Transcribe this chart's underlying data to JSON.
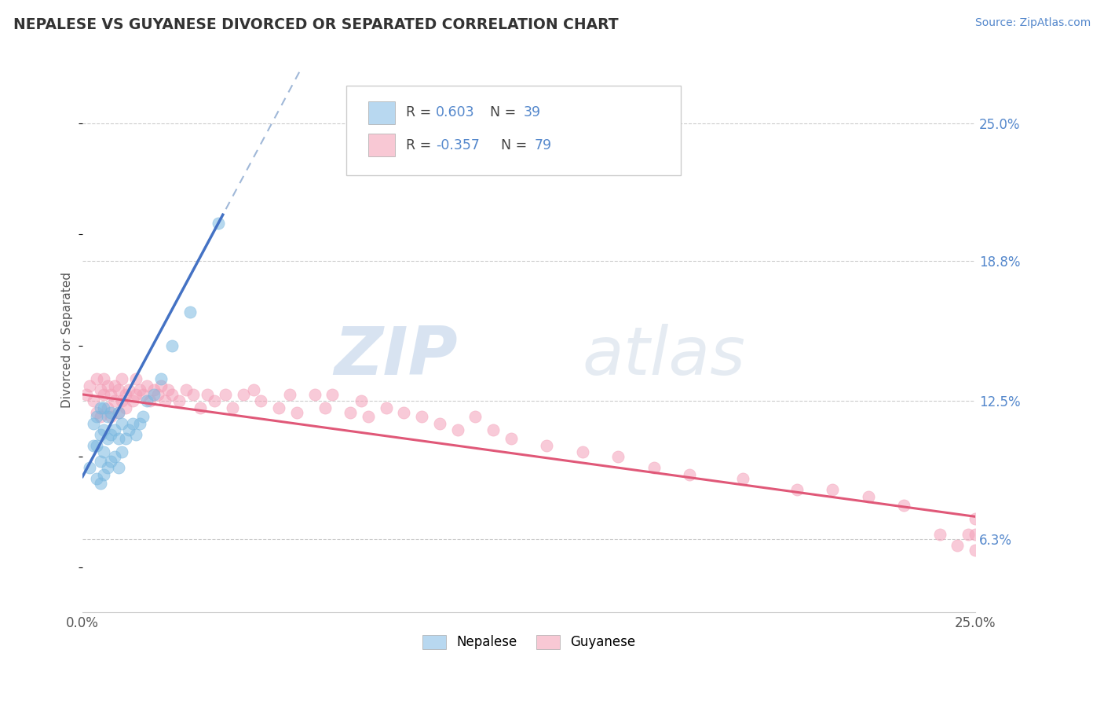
{
  "title": "NEPALESE VS GUYANESE DIVORCED OR SEPARATED CORRELATION CHART",
  "source_text": "Source: ZipAtlas.com",
  "ylabel": "Divorced or Separated",
  "ytick_labels": [
    "25.0%",
    "18.8%",
    "12.5%",
    "6.3%"
  ],
  "ytick_values": [
    0.25,
    0.188,
    0.125,
    0.063
  ],
  "xlim": [
    0.0,
    0.25
  ],
  "ylim": [
    0.03,
    0.275
  ],
  "watermark_zip": "ZIP",
  "watermark_atlas": "atlas",
  "blue_color": "#7ab8e0",
  "pink_color": "#f4a0b8",
  "blue_fill": "#b8d8f0",
  "pink_fill": "#f8c8d4",
  "blue_line": "#4472c4",
  "pink_line": "#e05878",
  "dash_color": "#a0b8d8",
  "nepalese_x": [
    0.002,
    0.003,
    0.003,
    0.004,
    0.004,
    0.004,
    0.005,
    0.005,
    0.005,
    0.005,
    0.006,
    0.006,
    0.006,
    0.006,
    0.007,
    0.007,
    0.007,
    0.008,
    0.008,
    0.008,
    0.009,
    0.009,
    0.01,
    0.01,
    0.01,
    0.011,
    0.011,
    0.012,
    0.013,
    0.014,
    0.015,
    0.016,
    0.017,
    0.018,
    0.02,
    0.022,
    0.025,
    0.03,
    0.038
  ],
  "nepalese_y": [
    0.095,
    0.105,
    0.115,
    0.09,
    0.105,
    0.118,
    0.088,
    0.098,
    0.11,
    0.122,
    0.092,
    0.102,
    0.112,
    0.122,
    0.095,
    0.108,
    0.118,
    0.098,
    0.11,
    0.12,
    0.1,
    0.112,
    0.095,
    0.108,
    0.12,
    0.102,
    0.115,
    0.108,
    0.112,
    0.115,
    0.11,
    0.115,
    0.118,
    0.125,
    0.128,
    0.135,
    0.15,
    0.165,
    0.205
  ],
  "guyanese_x": [
    0.001,
    0.002,
    0.003,
    0.004,
    0.004,
    0.005,
    0.005,
    0.006,
    0.006,
    0.007,
    0.007,
    0.008,
    0.008,
    0.009,
    0.009,
    0.01,
    0.01,
    0.011,
    0.011,
    0.012,
    0.012,
    0.013,
    0.014,
    0.015,
    0.015,
    0.016,
    0.017,
    0.018,
    0.019,
    0.02,
    0.021,
    0.022,
    0.023,
    0.024,
    0.025,
    0.027,
    0.029,
    0.031,
    0.033,
    0.035,
    0.037,
    0.04,
    0.042,
    0.045,
    0.048,
    0.05,
    0.055,
    0.058,
    0.06,
    0.065,
    0.068,
    0.07,
    0.075,
    0.078,
    0.08,
    0.085,
    0.09,
    0.095,
    0.1,
    0.105,
    0.11,
    0.115,
    0.12,
    0.13,
    0.14,
    0.15,
    0.16,
    0.17,
    0.185,
    0.2,
    0.21,
    0.22,
    0.23,
    0.24,
    0.245,
    0.248,
    0.25,
    0.25,
    0.25
  ],
  "guyanese_y": [
    0.128,
    0.132,
    0.125,
    0.135,
    0.12,
    0.13,
    0.118,
    0.128,
    0.135,
    0.122,
    0.132,
    0.118,
    0.128,
    0.125,
    0.132,
    0.12,
    0.13,
    0.125,
    0.135,
    0.122,
    0.128,
    0.13,
    0.125,
    0.128,
    0.135,
    0.13,
    0.128,
    0.132,
    0.125,
    0.13,
    0.128,
    0.132,
    0.125,
    0.13,
    0.128,
    0.125,
    0.13,
    0.128,
    0.122,
    0.128,
    0.125,
    0.128,
    0.122,
    0.128,
    0.13,
    0.125,
    0.122,
    0.128,
    0.12,
    0.128,
    0.122,
    0.128,
    0.12,
    0.125,
    0.118,
    0.122,
    0.12,
    0.118,
    0.115,
    0.112,
    0.118,
    0.112,
    0.108,
    0.105,
    0.102,
    0.1,
    0.095,
    0.092,
    0.09,
    0.085,
    0.085,
    0.082,
    0.078,
    0.065,
    0.06,
    0.065,
    0.072,
    0.065,
    0.058
  ]
}
